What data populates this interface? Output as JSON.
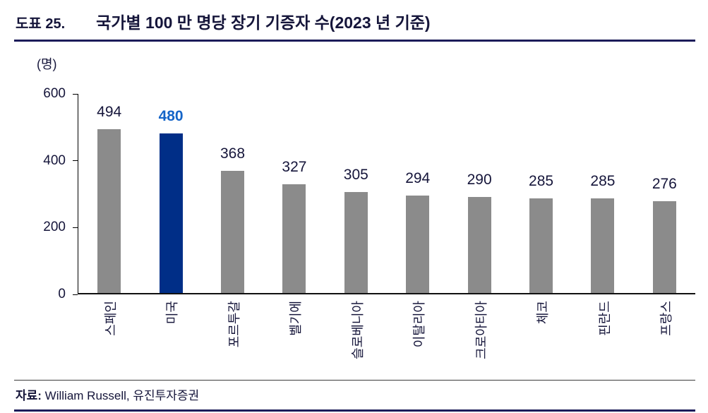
{
  "header": {
    "index_label": "도표 25.",
    "title": "국가별 100 만 명당 장기 기증자 수(2023 년 기준)"
  },
  "chart": {
    "unit_label": "(명)",
    "y_ticks": [
      600,
      400,
      200,
      0
    ]
  },
  "chart_data": {
    "type": "bar",
    "title": "국가별 100 만 명당 장기 기증자 수(2023 년 기준)",
    "ylabel": "(명)",
    "ylim": [
      0,
      600
    ],
    "grid": false,
    "legend": false,
    "categories": [
      "스페인",
      "미국",
      "포르투갈",
      "벨기에",
      "슬로베니아",
      "이탈리아",
      "크로아티아",
      "체코",
      "핀란드",
      "프랑스"
    ],
    "values": [
      494,
      480,
      368,
      327,
      305,
      294,
      290,
      285,
      285,
      276
    ],
    "highlight_index": 1,
    "colors": {
      "bar": "#8b8b8b",
      "highlight_bar": "#002e87",
      "value_label": "#15153a",
      "highlight_value_label": "#1565c8",
      "accent_rule": "#1c1c5a"
    }
  },
  "footer": {
    "source_label": "자료:",
    "source_text": " William Russell, 유진투자증권"
  }
}
